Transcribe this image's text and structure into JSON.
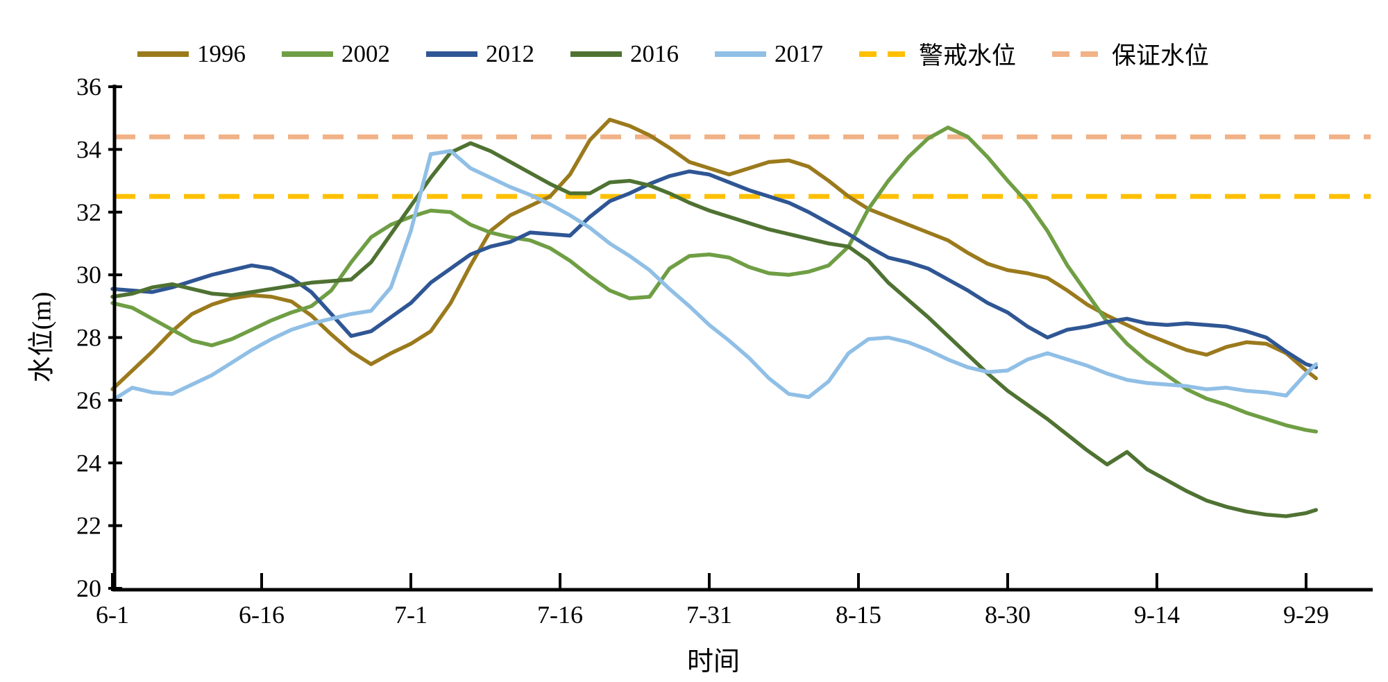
{
  "chart_data": {
    "type": "line",
    "title": "",
    "xlabel": "时间",
    "ylabel": "水位(m)",
    "ylim": [
      20,
      36
    ],
    "y_ticks": [
      20,
      22,
      24,
      26,
      28,
      30,
      32,
      34,
      36
    ],
    "x_ticks": [
      {
        "label": "6-1",
        "day": 0
      },
      {
        "label": "6-16",
        "day": 15
      },
      {
        "label": "7-1",
        "day": 30
      },
      {
        "label": "7-16",
        "day": 45
      },
      {
        "label": "7-31",
        "day": 60
      },
      {
        "label": "8-15",
        "day": 75
      },
      {
        "label": "8-30",
        "day": 90
      },
      {
        "label": "9-14",
        "day": 105
      },
      {
        "label": "9-29",
        "day": 120
      }
    ],
    "dates": [
      "6-1",
      "6-3",
      "6-5",
      "6-7",
      "6-9",
      "6-11",
      "6-13",
      "6-15",
      "6-17",
      "6-19",
      "6-21",
      "6-23",
      "6-25",
      "6-27",
      "6-29",
      "7-1",
      "7-3",
      "7-5",
      "7-7",
      "7-9",
      "7-11",
      "7-13",
      "7-15",
      "7-17",
      "7-19",
      "7-21",
      "7-23",
      "7-25",
      "7-27",
      "7-29",
      "7-31",
      "8-2",
      "8-4",
      "8-6",
      "8-8",
      "8-10",
      "8-12",
      "8-14",
      "8-16",
      "8-18",
      "8-20",
      "8-22",
      "8-24",
      "8-26",
      "8-28",
      "8-30",
      "9-1",
      "9-3",
      "9-5",
      "9-7",
      "9-9",
      "9-11",
      "9-13",
      "9-15",
      "9-17",
      "9-19",
      "9-21",
      "9-23",
      "9-25",
      "9-27",
      "9-29",
      "9-30"
    ],
    "days": [
      0,
      2,
      4,
      6,
      8,
      10,
      12,
      14,
      16,
      18,
      20,
      22,
      24,
      26,
      28,
      30,
      32,
      34,
      36,
      38,
      40,
      42,
      44,
      46,
      48,
      50,
      52,
      54,
      56,
      58,
      60,
      62,
      64,
      66,
      68,
      70,
      72,
      74,
      76,
      78,
      80,
      82,
      84,
      86,
      88,
      90,
      92,
      94,
      96,
      98,
      100,
      102,
      104,
      106,
      108,
      110,
      112,
      114,
      116,
      118,
      120,
      121
    ],
    "series": [
      {
        "name": "1996",
        "color": "#9B7A1D",
        "values": [
          26.35,
          26.95,
          27.55,
          28.2,
          28.75,
          29.05,
          29.25,
          29.35,
          29.3,
          29.15,
          28.7,
          28.1,
          27.55,
          27.15,
          27.5,
          27.8,
          28.2,
          29.1,
          30.3,
          31.4,
          31.9,
          32.2,
          32.5,
          33.2,
          34.3,
          34.95,
          34.75,
          34.45,
          34.05,
          33.6,
          33.4,
          33.2,
          33.4,
          33.6,
          33.65,
          33.45,
          33.0,
          32.5,
          32.1,
          31.85,
          31.6,
          31.35,
          31.1,
          30.7,
          30.35,
          30.15,
          30.05,
          29.9,
          29.5,
          29.05,
          28.7,
          28.4,
          28.1,
          27.85,
          27.6,
          27.45,
          27.7,
          27.85,
          27.8,
          27.5,
          26.95,
          26.7
        ]
      },
      {
        "name": "2002",
        "color": "#6F9E44",
        "values": [
          29.1,
          28.95,
          28.6,
          28.25,
          27.9,
          27.75,
          27.95,
          28.25,
          28.55,
          28.8,
          29.0,
          29.5,
          30.4,
          31.2,
          31.6,
          31.85,
          32.05,
          32.0,
          31.6,
          31.35,
          31.2,
          31.1,
          30.85,
          30.45,
          29.95,
          29.5,
          29.25,
          29.3,
          30.2,
          30.6,
          30.65,
          30.55,
          30.25,
          30.05,
          30.0,
          30.1,
          30.3,
          30.9,
          32.1,
          33.0,
          33.75,
          34.35,
          34.7,
          34.4,
          33.75,
          33.0,
          32.3,
          31.4,
          30.3,
          29.4,
          28.5,
          27.8,
          27.25,
          26.8,
          26.35,
          26.05,
          25.85,
          25.6,
          25.4,
          25.2,
          25.05,
          25.0
        ]
      },
      {
        "name": "2012",
        "color": "#2F5694",
        "values": [
          29.55,
          29.5,
          29.45,
          29.6,
          29.8,
          30.0,
          30.15,
          30.3,
          30.2,
          29.9,
          29.45,
          28.75,
          28.05,
          28.2,
          28.65,
          29.1,
          29.75,
          30.2,
          30.65,
          30.9,
          31.05,
          31.35,
          31.3,
          31.25,
          31.85,
          32.35,
          32.6,
          32.9,
          33.15,
          33.3,
          33.2,
          32.95,
          32.7,
          32.5,
          32.3,
          32.0,
          31.65,
          31.3,
          30.9,
          30.55,
          30.4,
          30.2,
          29.85,
          29.5,
          29.1,
          28.8,
          28.35,
          28.0,
          28.25,
          28.35,
          28.5,
          28.6,
          28.45,
          28.4,
          28.45,
          28.4,
          28.35,
          28.2,
          28.0,
          27.55,
          27.15,
          27.05
        ]
      },
      {
        "name": "2016",
        "color": "#4F7232",
        "values": [
          29.3,
          29.4,
          29.6,
          29.7,
          29.55,
          29.4,
          29.35,
          29.45,
          29.55,
          29.65,
          29.75,
          29.8,
          29.85,
          30.4,
          31.3,
          32.2,
          33.1,
          33.9,
          34.2,
          33.95,
          33.6,
          33.25,
          32.9,
          32.6,
          32.6,
          32.95,
          33.0,
          32.85,
          32.6,
          32.3,
          32.05,
          31.85,
          31.65,
          31.45,
          31.3,
          31.15,
          31.0,
          30.9,
          30.45,
          29.75,
          29.2,
          28.65,
          28.05,
          27.45,
          26.85,
          26.3,
          25.85,
          25.4,
          24.9,
          24.4,
          23.95,
          24.35,
          23.8,
          23.45,
          23.1,
          22.8,
          22.6,
          22.45,
          22.35,
          22.3,
          22.4,
          22.5
        ]
      },
      {
        "name": "2017",
        "color": "#90BFE6",
        "values": [
          26.0,
          26.4,
          26.25,
          26.2,
          26.5,
          26.8,
          27.2,
          27.6,
          27.95,
          28.25,
          28.45,
          28.6,
          28.75,
          28.85,
          29.6,
          31.4,
          33.85,
          33.95,
          33.4,
          33.1,
          32.8,
          32.55,
          32.25,
          31.9,
          31.5,
          31.0,
          30.6,
          30.15,
          29.55,
          29.0,
          28.4,
          27.9,
          27.35,
          26.7,
          26.2,
          26.1,
          26.6,
          27.5,
          27.95,
          28.0,
          27.85,
          27.6,
          27.3,
          27.05,
          26.9,
          26.95,
          27.3,
          27.5,
          27.3,
          27.1,
          26.85,
          26.65,
          26.55,
          26.5,
          26.45,
          26.35,
          26.4,
          26.3,
          26.25,
          26.15,
          26.85,
          27.15
        ]
      }
    ],
    "reference_lines": [
      {
        "label": "警戒水位",
        "value": 32.5,
        "color": "#FFC000"
      },
      {
        "label": "保证水位",
        "value": 34.4,
        "color": "#F1B287"
      }
    ],
    "legend_position": "top",
    "grid": false
  },
  "legend": {
    "items": [
      {
        "label": "1996",
        "color": "#9B7A1D",
        "style": "solid"
      },
      {
        "label": "2002",
        "color": "#6F9E44",
        "style": "solid"
      },
      {
        "label": "2012",
        "color": "#2F5694",
        "style": "solid"
      },
      {
        "label": "2016",
        "color": "#4F7232",
        "style": "solid"
      },
      {
        "label": "2017",
        "color": "#90BFE6",
        "style": "solid"
      },
      {
        "label": "警戒水位",
        "color": "#FFC000",
        "style": "dashed"
      },
      {
        "label": "保证水位",
        "color": "#F1B287",
        "style": "dashed"
      }
    ]
  },
  "axis": {
    "color": "#000000",
    "tick_font_px": 36
  }
}
